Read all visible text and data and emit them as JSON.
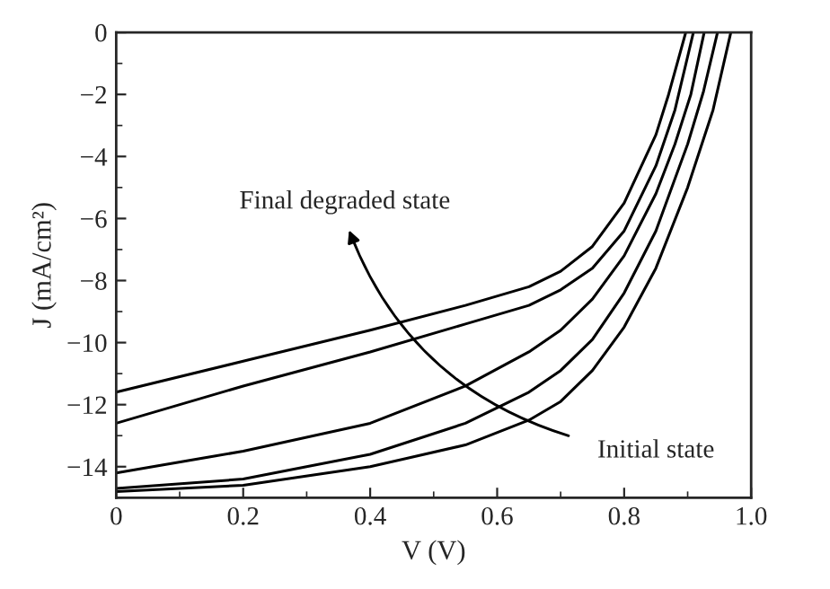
{
  "chart_data": {
    "type": "line",
    "xlabel": "V (V)",
    "ylabel": "J (mA/cm²)",
    "xlim": [
      0,
      1.0
    ],
    "ylim": [
      -15,
      0
    ],
    "xticks": [
      0,
      0.2,
      0.4,
      0.6,
      0.8,
      {
        "value": 1.0,
        "label": "1.0"
      }
    ],
    "yticks": [
      {
        "value": -14,
        "label": "−14"
      },
      {
        "value": -12,
        "label": "−12"
      },
      {
        "value": -10,
        "label": "−10"
      },
      {
        "value": -8,
        "label": "−8"
      },
      {
        "value": -6,
        "label": "−6"
      },
      {
        "value": -4,
        "label": "−4"
      },
      {
        "value": -2,
        "label": "−2"
      },
      0
    ],
    "grid": false,
    "legend": false,
    "marker": "none",
    "line_style": "solid",
    "series": [
      {
        "color": "#000000",
        "x": [
          0,
          0.2,
          0.4,
          0.55,
          0.65,
          0.7,
          0.75,
          0.8,
          0.85,
          0.87,
          0.897
        ],
        "values": [
          -11.6,
          -10.6,
          -9.6,
          -8.8,
          -8.2,
          -7.7,
          -6.9,
          -5.5,
          -3.3,
          -2.0,
          0
        ]
      },
      {
        "color": "#000000",
        "x": [
          0,
          0.2,
          0.4,
          0.55,
          0.65,
          0.7,
          0.75,
          0.8,
          0.85,
          0.88,
          0.909
        ],
        "values": [
          -12.6,
          -11.4,
          -10.3,
          -9.4,
          -8.8,
          -8.3,
          -7.6,
          -6.4,
          -4.3,
          -2.5,
          0
        ]
      },
      {
        "color": "#000000",
        "x": [
          0,
          0.2,
          0.4,
          0.55,
          0.65,
          0.7,
          0.75,
          0.8,
          0.85,
          0.88,
          0.905,
          0.926
        ],
        "values": [
          -14.2,
          -13.5,
          -12.6,
          -11.4,
          -10.3,
          -9.6,
          -8.6,
          -7.2,
          -5.2,
          -3.6,
          -2.0,
          0
        ]
      },
      {
        "color": "#000000",
        "x": [
          0,
          0.2,
          0.4,
          0.55,
          0.65,
          0.7,
          0.75,
          0.8,
          0.85,
          0.9,
          0.925,
          0.947
        ],
        "values": [
          -14.7,
          -14.4,
          -13.6,
          -12.6,
          -11.6,
          -10.9,
          -9.9,
          -8.4,
          -6.4,
          -3.6,
          -1.9,
          0
        ]
      },
      {
        "color": "#000000",
        "x": [
          0,
          0.2,
          0.4,
          0.55,
          0.65,
          0.7,
          0.75,
          0.8,
          0.85,
          0.9,
          0.94,
          0.968
        ],
        "values": [
          -14.8,
          -14.6,
          -14.0,
          -13.3,
          -12.5,
          -11.9,
          -10.9,
          -9.5,
          -7.6,
          -5.0,
          -2.5,
          0
        ]
      }
    ],
    "annotations": [
      "Final degraded state",
      "Initial state"
    ]
  }
}
